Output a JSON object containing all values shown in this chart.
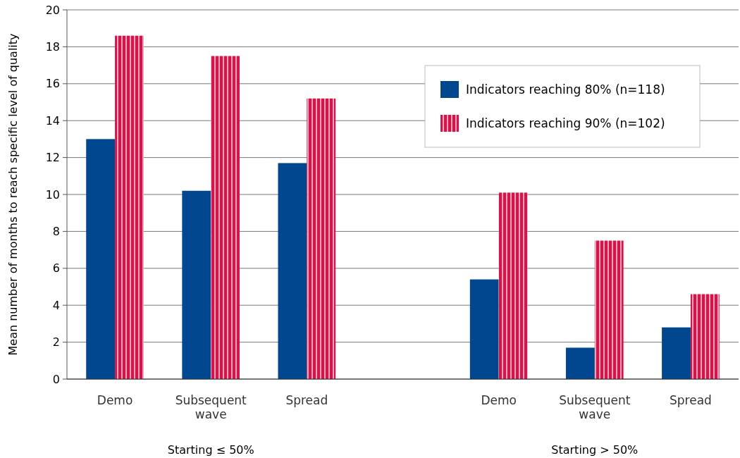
{
  "chart_data": {
    "type": "bar",
    "ylabel": "Mean number of months to reach specific level of quality",
    "categories": [
      "Demo",
      "Subsequent wave",
      "Spread",
      null,
      "Demo",
      "Subsequent wave",
      "Spread"
    ],
    "series": [
      {
        "name": "Indicators reaching 80% (n=118)",
        "color": "#00478f",
        "values": [
          13.0,
          10.2,
          11.7,
          null,
          5.4,
          1.7,
          2.8
        ]
      },
      {
        "name": "Indicators reaching 90% (n=102)",
        "color": "#d2164b",
        "values": [
          18.6,
          17.5,
          15.2,
          null,
          10.1,
          7.5,
          4.6
        ]
      }
    ],
    "ylim": [
      0,
      20
    ],
    "yticks": [
      0,
      2,
      4,
      6,
      8,
      10,
      12,
      14,
      16,
      18,
      20
    ],
    "grid": "y",
    "legend": "top right",
    "annotations": [
      "Starting ≤ 50%",
      "Starting > 50%"
    ]
  }
}
